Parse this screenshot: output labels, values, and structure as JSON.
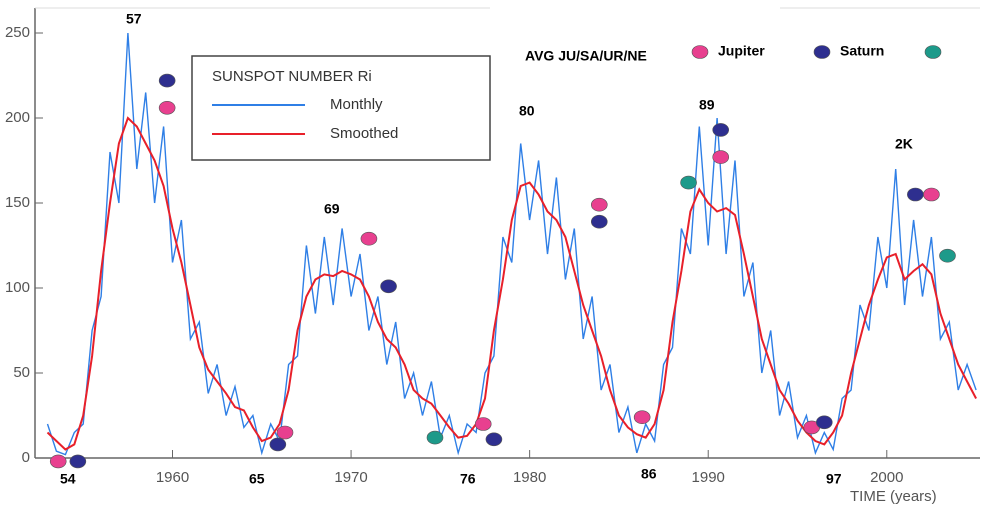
{
  "chart_data": [
    {
      "type": "line",
      "title": "SUNSPOT NUMBER Ri",
      "x_label": "TIME (years)",
      "annotations": [
        "57",
        "54",
        "69",
        "65",
        "80",
        "76",
        "89",
        "86",
        "2K",
        "97",
        "AVG JU/SA/UR/NE"
      ],
      "x": [
        1953,
        1953.5,
        1954,
        1954.5,
        1955,
        1955.5,
        1956,
        1956.5,
        1957,
        1957.5,
        1958,
        1958.5,
        1959,
        1959.5,
        1960,
        1960.5,
        1961,
        1961.5,
        1962,
        1962.5,
        1963,
        1963.5,
        1964,
        1964.5,
        1965,
        1965.5,
        1966,
        1966.5,
        1967,
        1967.5,
        1968,
        1968.5,
        1969,
        1969.5,
        1970,
        1970.5,
        1971,
        1971.5,
        1972,
        1972.5,
        1973,
        1973.5,
        1974,
        1974.5,
        1975,
        1975.5,
        1976,
        1976.5,
        1977,
        1977.5,
        1978,
        1978.5,
        1979,
        1979.5,
        1980,
        1980.5,
        1981,
        1981.5,
        1982,
        1982.5,
        1983,
        1983.5,
        1984,
        1984.5,
        1985,
        1985.5,
        1986,
        1986.5,
        1987,
        1987.5,
        1988,
        1988.5,
        1989,
        1989.5,
        1990,
        1990.5,
        1991,
        1991.5,
        1992,
        1992.5,
        1993,
        1993.5,
        1994,
        1994.5,
        1995,
        1995.5,
        1996,
        1996.5,
        1997,
        1997.5,
        1998,
        1998.5,
        1999,
        1999.5,
        2000,
        2000.5,
        2001,
        2001.5,
        2002,
        2002.5,
        2003,
        2003.5,
        2004,
        2004.5,
        2005
      ],
      "series": [
        {
          "name": "Monthly",
          "color": "#2f7fe6",
          "values": [
            20,
            4,
            2,
            15,
            20,
            75,
            95,
            180,
            150,
            250,
            170,
            215,
            150,
            195,
            115,
            140,
            70,
            80,
            38,
            55,
            25,
            42,
            18,
            25,
            3,
            20,
            10,
            55,
            60,
            125,
            85,
            130,
            90,
            135,
            95,
            120,
            75,
            95,
            55,
            80,
            35,
            50,
            25,
            45,
            12,
            25,
            3,
            20,
            15,
            50,
            60,
            130,
            115,
            185,
            140,
            175,
            120,
            165,
            105,
            135,
            70,
            95,
            40,
            55,
            15,
            30,
            3,
            20,
            10,
            55,
            65,
            135,
            120,
            195,
            125,
            200,
            120,
            175,
            95,
            115,
            50,
            75,
            25,
            45,
            12,
            25,
            3,
            15,
            5,
            35,
            40,
            90,
            75,
            130,
            100,
            170,
            90,
            140,
            95,
            130,
            70,
            80,
            40,
            55,
            40
          ]
        },
        {
          "name": "Smoothed",
          "color": "#e8202a",
          "values": [
            15,
            10,
            5,
            8,
            25,
            60,
            110,
            150,
            185,
            200,
            195,
            185,
            175,
            160,
            135,
            115,
            90,
            65,
            52,
            45,
            38,
            30,
            28,
            18,
            10,
            12,
            20,
            40,
            75,
            95,
            105,
            108,
            107,
            110,
            108,
            105,
            95,
            80,
            70,
            65,
            55,
            40,
            35,
            32,
            25,
            18,
            12,
            13,
            20,
            35,
            75,
            105,
            140,
            160,
            162,
            155,
            145,
            140,
            130,
            110,
            90,
            75,
            60,
            40,
            25,
            18,
            14,
            12,
            20,
            40,
            80,
            110,
            145,
            158,
            150,
            145,
            147,
            143,
            120,
            95,
            70,
            55,
            40,
            32,
            22,
            15,
            10,
            8,
            15,
            25,
            50,
            70,
            90,
            105,
            118,
            120,
            105,
            110,
            114,
            108,
            85,
            70,
            55,
            45,
            35
          ]
        }
      ],
      "xlim": [
        1952.3,
        2005.5
      ],
      "xticks": [
        1960,
        1970,
        1980,
        1990,
        2000
      ],
      "ylim": [
        0,
        250
      ],
      "yticks": [
        0,
        50,
        100,
        150,
        200,
        250
      ]
    },
    {
      "type": "scatter",
      "series": [
        {
          "name": "Jupiter",
          "color": "#e8408f",
          "x": [
            1953.6,
            1959.7,
            1971.0,
            1966.3,
            1977.4,
            1983.9,
            1986.3,
            1990.7,
            1995.8,
            2002.5
          ],
          "values": [
            -2,
            206,
            129,
            15,
            20,
            149,
            24,
            177,
            18,
            155
          ]
        },
        {
          "name": "Saturn",
          "color": "#2e2f8f",
          "x": [
            1954.7,
            1959.7,
            1972.1,
            1965.9,
            1978.0,
            1983.9,
            1990.7,
            1996.5,
            2001.6
          ],
          "values": [
            -2,
            222,
            101,
            8,
            11,
            139,
            193,
            21,
            155
          ]
        },
        {
          "color": "#1d9a8a",
          "x": [
            1974.7,
            1988.9,
            2003.4
          ],
          "values": [
            12,
            162,
            119
          ]
        }
      ]
    }
  ]
}
